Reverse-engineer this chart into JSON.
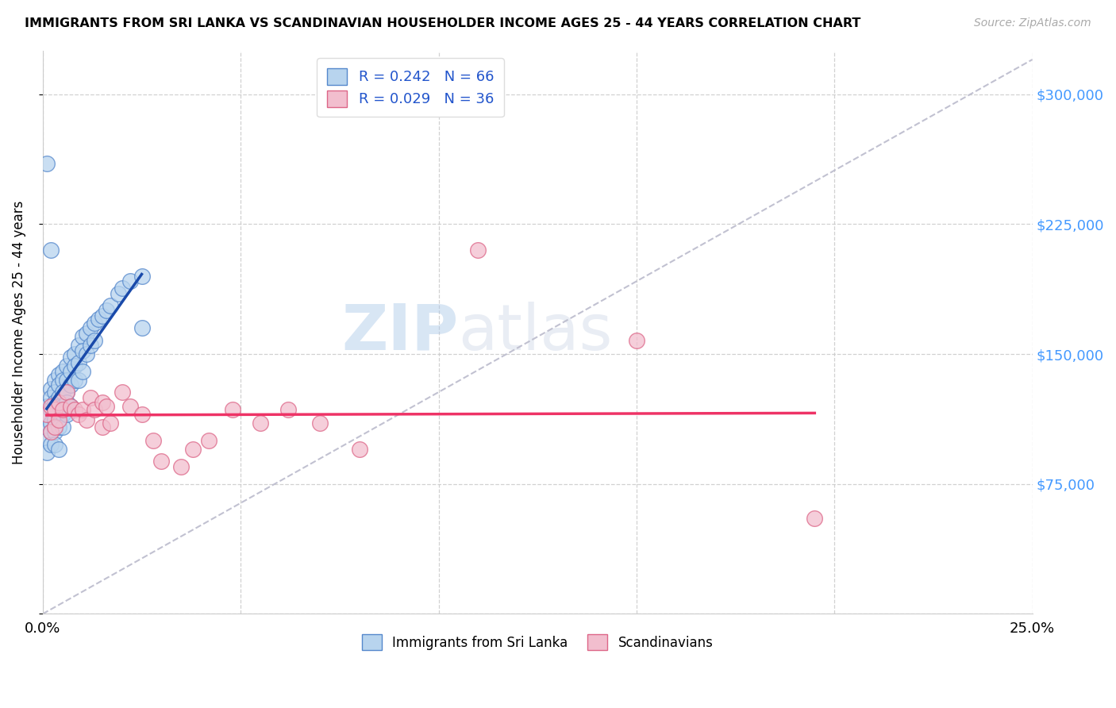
{
  "title": "IMMIGRANTS FROM SRI LANKA VS SCANDINAVIAN HOUSEHOLDER INCOME AGES 25 - 44 YEARS CORRELATION CHART",
  "source": "Source: ZipAtlas.com",
  "ylabel": "Householder Income Ages 25 - 44 years",
  "xlim": [
    0.0,
    0.25
  ],
  "ylim": [
    0,
    325000
  ],
  "yticks": [
    0,
    75000,
    150000,
    225000,
    300000
  ],
  "ytick_labels": [
    "",
    "$75,000",
    "$150,000",
    "$225,000",
    "$300,000"
  ],
  "xticks": [
    0.0,
    0.05,
    0.1,
    0.15,
    0.2,
    0.25
  ],
  "xtick_labels": [
    "0.0%",
    "",
    "",
    "",
    "",
    "25.0%"
  ],
  "sri_lanka_color": "#b8d4ee",
  "sri_lanka_edge_color": "#5588cc",
  "scandinavian_color": "#f2bece",
  "scandinavian_edge_color": "#dd6688",
  "trend_sri_lanka_color": "#1a4aaa",
  "trend_scandinavian_color": "#ee3366",
  "trend_dashed_color": "#bbbbcc",
  "watermark_color": "#c5d8ef",
  "sri_lanka_x": [
    0.001,
    0.001,
    0.001,
    0.001,
    0.001,
    0.002,
    0.002,
    0.002,
    0.002,
    0.002,
    0.002,
    0.003,
    0.003,
    0.003,
    0.003,
    0.003,
    0.003,
    0.003,
    0.004,
    0.004,
    0.004,
    0.004,
    0.004,
    0.004,
    0.004,
    0.005,
    0.005,
    0.005,
    0.005,
    0.005,
    0.005,
    0.006,
    0.006,
    0.006,
    0.006,
    0.006,
    0.007,
    0.007,
    0.007,
    0.007,
    0.008,
    0.008,
    0.008,
    0.009,
    0.009,
    0.009,
    0.01,
    0.01,
    0.01,
    0.011,
    0.011,
    0.012,
    0.012,
    0.013,
    0.013,
    0.014,
    0.015,
    0.016,
    0.017,
    0.019,
    0.02,
    0.022,
    0.025,
    0.001,
    0.002,
    0.025
  ],
  "sri_lanka_y": [
    120000,
    115000,
    108000,
    100000,
    93000,
    130000,
    125000,
    118000,
    110000,
    105000,
    98000,
    135000,
    128000,
    122000,
    118000,
    112000,
    105000,
    98000,
    138000,
    132000,
    125000,
    120000,
    115000,
    108000,
    95000,
    140000,
    135000,
    128000,
    120000,
    115000,
    108000,
    143000,
    135000,
    128000,
    122000,
    115000,
    148000,
    140000,
    132000,
    120000,
    150000,
    143000,
    135000,
    155000,
    145000,
    135000,
    160000,
    152000,
    140000,
    162000,
    150000,
    165000,
    155000,
    168000,
    158000,
    170000,
    172000,
    175000,
    178000,
    185000,
    188000,
    192000,
    195000,
    260000,
    210000,
    165000
  ],
  "scandinavian_x": [
    0.001,
    0.002,
    0.002,
    0.003,
    0.003,
    0.004,
    0.004,
    0.005,
    0.006,
    0.007,
    0.008,
    0.009,
    0.01,
    0.011,
    0.012,
    0.013,
    0.015,
    0.015,
    0.016,
    0.017,
    0.02,
    0.022,
    0.025,
    0.028,
    0.03,
    0.035,
    0.038,
    0.042,
    0.048,
    0.055,
    0.062,
    0.07,
    0.08,
    0.11,
    0.15,
    0.195
  ],
  "scandinavian_y": [
    115000,
    120000,
    105000,
    118000,
    108000,
    122000,
    112000,
    118000,
    128000,
    120000,
    118000,
    115000,
    118000,
    112000,
    125000,
    118000,
    122000,
    108000,
    120000,
    110000,
    128000,
    120000,
    115000,
    100000,
    88000,
    85000,
    95000,
    100000,
    118000,
    110000,
    118000,
    110000,
    95000,
    210000,
    158000,
    55000
  ]
}
